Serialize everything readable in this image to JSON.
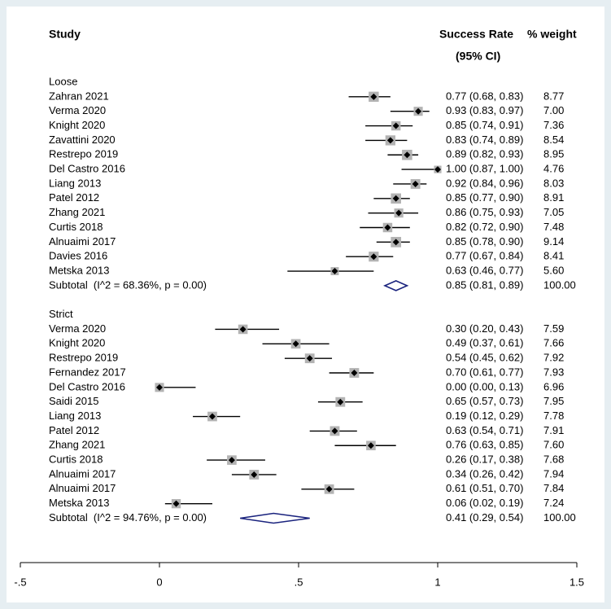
{
  "chart_data": {
    "type": "forest",
    "header": {
      "study": "Study",
      "effect": "Success Rate",
      "effect_sub": "(95% CI)",
      "weight": "% weight"
    },
    "xlim": [
      -0.5,
      1.5
    ],
    "xticks": [
      {
        "value": -0.5,
        "label": "-.5"
      },
      0,
      {
        "value": 0.5,
        "label": ".5"
      },
      1,
      1.5
    ],
    "box_color": "#b3b3b3",
    "diamond_color": "#1a237e",
    "groups": [
      {
        "name": "Loose",
        "studies": [
          {
            "label": "Zahran 2021",
            "estimate": 0.77,
            "lower": 0.68,
            "upper": 0.83,
            "ci_label": "0.77 (0.68, 0.83)",
            "weight": 8.77,
            "weight_label": "8.77"
          },
          {
            "label": "Verma 2020",
            "estimate": 0.93,
            "lower": 0.83,
            "upper": 0.97,
            "ci_label": "0.93 (0.83, 0.97)",
            "weight": 7.0,
            "weight_label": "7.00"
          },
          {
            "label": "Knight 2020",
            "estimate": 0.85,
            "lower": 0.74,
            "upper": 0.91,
            "ci_label": "0.85 (0.74, 0.91)",
            "weight": 7.36,
            "weight_label": "7.36"
          },
          {
            "label": "Zavattini 2020",
            "estimate": 0.83,
            "lower": 0.74,
            "upper": 0.89,
            "ci_label": "0.83 (0.74, 0.89)",
            "weight": 8.54,
            "weight_label": "8.54"
          },
          {
            "label": "Restrepo 2019",
            "estimate": 0.89,
            "lower": 0.82,
            "upper": 0.93,
            "ci_label": "0.89 (0.82, 0.93)",
            "weight": 8.95,
            "weight_label": "8.95"
          },
          {
            "label": "Del Castro 2016",
            "estimate": 1.0,
            "lower": 0.87,
            "upper": 1.0,
            "ci_label": "1.00 (0.87, 1.00)",
            "weight": 4.76,
            "weight_label": "4.76"
          },
          {
            "label": "Liang 2013",
            "estimate": 0.92,
            "lower": 0.84,
            "upper": 0.96,
            "ci_label": "0.92 (0.84, 0.96)",
            "weight": 8.03,
            "weight_label": "8.03"
          },
          {
            "label": "Patel 2012",
            "estimate": 0.85,
            "lower": 0.77,
            "upper": 0.9,
            "ci_label": "0.85 (0.77, 0.90)",
            "weight": 8.91,
            "weight_label": "8.91"
          },
          {
            "label": "Zhang 2021",
            "estimate": 0.86,
            "lower": 0.75,
            "upper": 0.93,
            "ci_label": "0.86 (0.75, 0.93)",
            "weight": 7.05,
            "weight_label": "7.05"
          },
          {
            "label": "Curtis 2018",
            "estimate": 0.82,
            "lower": 0.72,
            "upper": 0.9,
            "ci_label": "0.82 (0.72, 0.90)",
            "weight": 7.48,
            "weight_label": "7.48"
          },
          {
            "label": "Alnuaimi 2017",
            "estimate": 0.85,
            "lower": 0.78,
            "upper": 0.9,
            "ci_label": "0.85 (0.78, 0.90)",
            "weight": 9.14,
            "weight_label": "9.14"
          },
          {
            "label": "Davies 2016",
            "estimate": 0.77,
            "lower": 0.67,
            "upper": 0.84,
            "ci_label": "0.77 (0.67, 0.84)",
            "weight": 8.41,
            "weight_label": "8.41"
          },
          {
            "label": "Metska 2013",
            "estimate": 0.63,
            "lower": 0.46,
            "upper": 0.77,
            "ci_label": "0.63 (0.46, 0.77)",
            "weight": 5.6,
            "weight_label": "5.60"
          }
        ],
        "subtotal": {
          "label": "Subtotal  (I^2 = 68.36%, p = 0.00)",
          "estimate": 0.85,
          "lower": 0.81,
          "upper": 0.89,
          "ci_label": "0.85 (0.81, 0.89)",
          "weight_label": "100.00"
        }
      },
      {
        "name": "Strict",
        "studies": [
          {
            "label": "Verma 2020",
            "estimate": 0.3,
            "lower": 0.2,
            "upper": 0.43,
            "ci_label": "0.30 (0.20, 0.43)",
            "weight": 7.59,
            "weight_label": "7.59"
          },
          {
            "label": "Knight 2020",
            "estimate": 0.49,
            "lower": 0.37,
            "upper": 0.61,
            "ci_label": "0.49 (0.37, 0.61)",
            "weight": 7.66,
            "weight_label": "7.66"
          },
          {
            "label": "Restrepo 2019",
            "estimate": 0.54,
            "lower": 0.45,
            "upper": 0.62,
            "ci_label": "0.54 (0.45, 0.62)",
            "weight": 7.92,
            "weight_label": "7.92"
          },
          {
            "label": "Fernandez 2017",
            "estimate": 0.7,
            "lower": 0.61,
            "upper": 0.77,
            "ci_label": "0.70 (0.61, 0.77)",
            "weight": 7.93,
            "weight_label": "7.93"
          },
          {
            "label": "Del Castro 2016",
            "estimate": 0.0,
            "lower": 0.0,
            "upper": 0.13,
            "ci_label": "0.00 (0.00, 0.13)",
            "weight": 6.96,
            "weight_label": "6.96"
          },
          {
            "label": "Saidi 2015",
            "estimate": 0.65,
            "lower": 0.57,
            "upper": 0.73,
            "ci_label": "0.65 (0.57, 0.73)",
            "weight": 7.95,
            "weight_label": "7.95"
          },
          {
            "label": "Liang 2013",
            "estimate": 0.19,
            "lower": 0.12,
            "upper": 0.29,
            "ci_label": "0.19 (0.12, 0.29)",
            "weight": 7.78,
            "weight_label": "7.78"
          },
          {
            "label": "Patel 2012",
            "estimate": 0.63,
            "lower": 0.54,
            "upper": 0.71,
            "ci_label": "0.63 (0.54, 0.71)",
            "weight": 7.91,
            "weight_label": "7.91"
          },
          {
            "label": "Zhang 2021",
            "estimate": 0.76,
            "lower": 0.63,
            "upper": 0.85,
            "ci_label": "0.76 (0.63, 0.85)",
            "weight": 7.6,
            "weight_label": "7.60"
          },
          {
            "label": "Curtis 2018",
            "estimate": 0.26,
            "lower": 0.17,
            "upper": 0.38,
            "ci_label": "0.26 (0.17, 0.38)",
            "weight": 7.68,
            "weight_label": "7.68"
          },
          {
            "label": "Alnuaimi 2017",
            "estimate": 0.34,
            "lower": 0.26,
            "upper": 0.42,
            "ci_label": "0.34 (0.26, 0.42)",
            "weight": 7.94,
            "weight_label": "7.94"
          },
          {
            "label": "Alnuaimi 2017",
            "estimate": 0.61,
            "lower": 0.51,
            "upper": 0.7,
            "ci_label": "0.61 (0.51, 0.70)",
            "weight": 7.84,
            "weight_label": "7.84"
          },
          {
            "label": "Metska 2013",
            "estimate": 0.06,
            "lower": 0.02,
            "upper": 0.19,
            "ci_label": "0.06 (0.02, 0.19)",
            "weight": 7.24,
            "weight_label": "7.24"
          }
        ],
        "subtotal": {
          "label": "Subtotal  (I^2 = 94.76%, p = 0.00)",
          "estimate": 0.41,
          "lower": 0.29,
          "upper": 0.54,
          "ci_label": "0.41 (0.29, 0.54)",
          "weight_label": "100.00"
        }
      }
    ]
  }
}
